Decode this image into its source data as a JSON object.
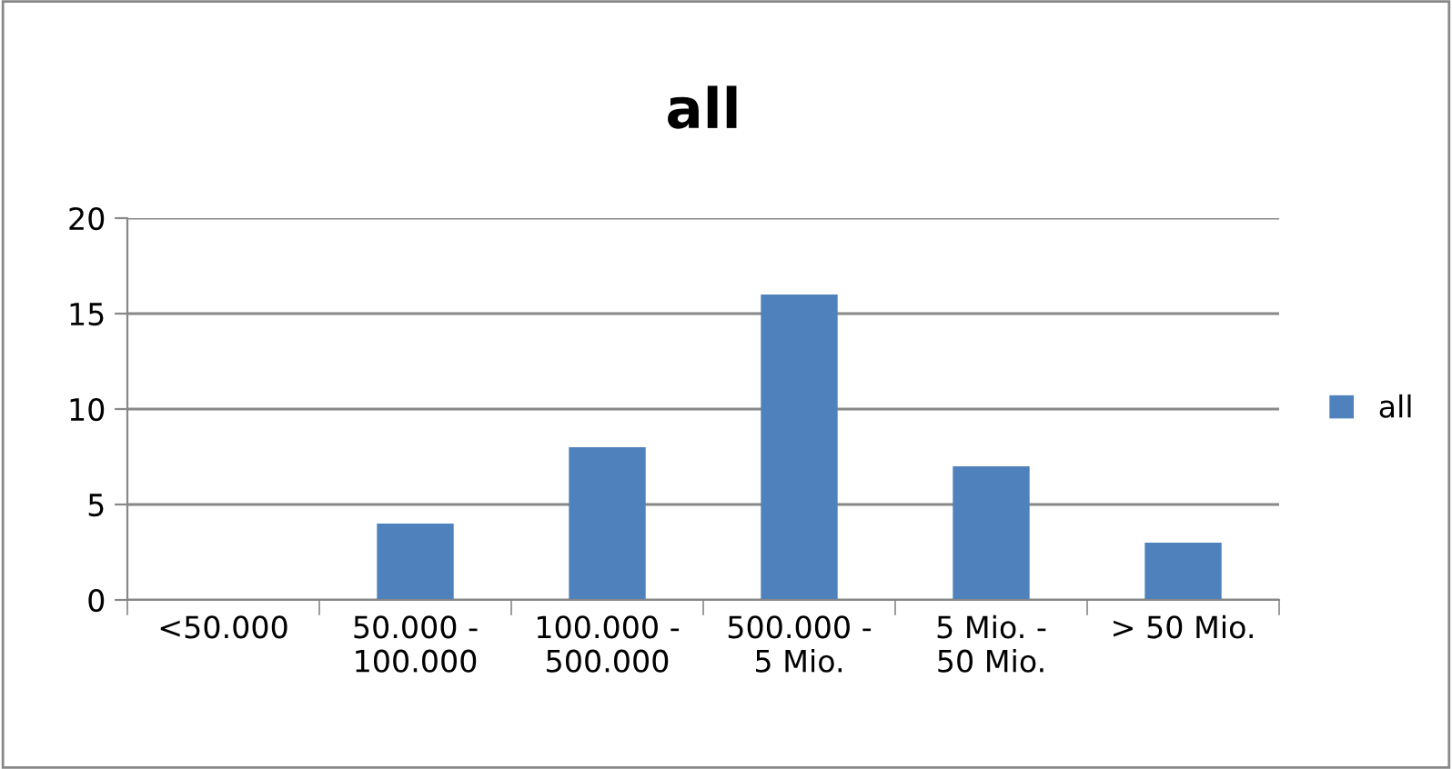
{
  "chart_data": {
    "type": "bar",
    "title": "all",
    "categories": [
      "<50.000",
      "50.000 -\n100.000",
      "100.000 -\n500.000",
      "500.000 -\n5 Mio.",
      "5 Mio. -\n50 Mio.",
      "> 50 Mio."
    ],
    "series": [
      {
        "name": "all",
        "color": "#4f81bd",
        "values": [
          0,
          4,
          8,
          16,
          7,
          3
        ]
      }
    ],
    "ylim": [
      0,
      20
    ],
    "yticks": [
      0,
      5,
      10,
      15,
      20
    ],
    "grid": "y",
    "legend": "right"
  }
}
